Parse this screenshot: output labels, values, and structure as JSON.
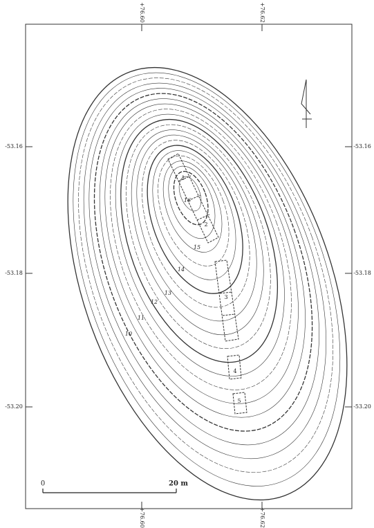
{
  "grid_labels": {
    "left": [
      "-53.16",
      "-53.18",
      "-53.20"
    ],
    "right": [
      "-53.16",
      "-53.18",
      "-53.20"
    ],
    "top": [
      "+76.60",
      "+76.62"
    ],
    "bottom": [
      "+76.60",
      "+76.62"
    ]
  },
  "contour_labels": [
    "10",
    "11",
    "12",
    "13",
    "14",
    "15",
    "16"
  ],
  "trench_labels": [
    "1",
    "2",
    "3",
    "4",
    "5"
  ],
  "scale": {
    "start": "0",
    "end": "20 m"
  }
}
